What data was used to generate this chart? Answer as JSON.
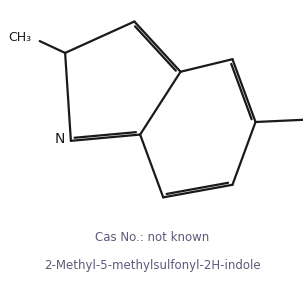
{
  "title_line1": "Cas No.: not known",
  "title_line2": "2-Methyl-5-methylsulfonyl-2H-indole",
  "bg_color": "#ffffff",
  "line_color": "#1a1a1a",
  "text_color": "#5a5a7a",
  "lw": 1.6,
  "dbl_sep": 0.09,
  "dbl_short": 0.13,
  "font_size_label": 8.5,
  "font_size_atom": 9.5
}
